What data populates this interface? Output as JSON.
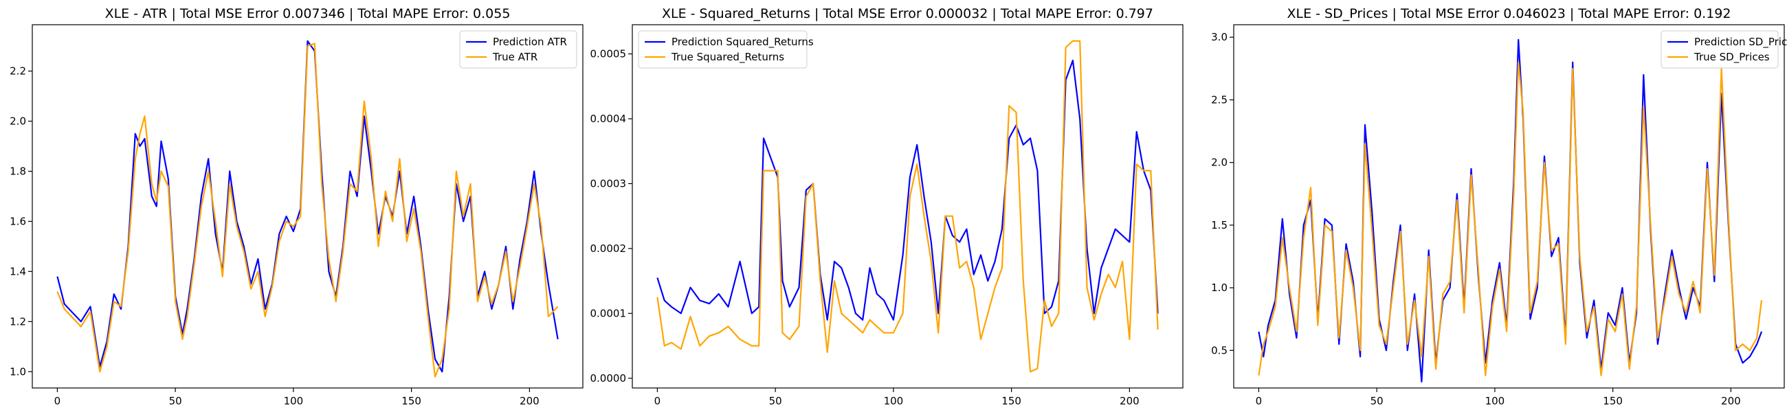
{
  "chart_data": [
    {
      "type": "line",
      "title": "XLE - ATR | Total MSE Error 0.007346 | Total MAPE Error: 0.055",
      "xlabel": "",
      "ylabel": "",
      "xlim": [
        -10.6,
        222.6
      ],
      "ylim": [
        0.935,
        2.385
      ],
      "xticks": [
        0,
        50,
        100,
        150,
        200
      ],
      "xtick_labels": [
        "0",
        "50",
        "100",
        "150",
        "200"
      ],
      "yticks": [
        1.0,
        1.2,
        1.4,
        1.6,
        1.8,
        2.0,
        2.2
      ],
      "ytick_labels": [
        "1.0",
        "1.2",
        "1.4",
        "1.6",
        "1.8",
        "2.0",
        "2.2"
      ],
      "legend_position": "top-right",
      "grid": false,
      "series": [
        {
          "name": "Prediction ATR",
          "color": "#0000ff",
          "x_points": [
            0,
            3,
            6,
            10,
            14,
            18,
            21,
            24,
            27,
            30,
            33,
            35,
            37,
            40,
            42,
            44,
            47,
            50,
            53,
            55,
            58,
            61,
            64,
            67,
            70,
            73,
            76,
            79,
            82,
            85,
            88,
            91,
            94,
            97,
            100,
            103,
            106,
            109,
            112,
            115,
            118,
            121,
            124,
            127,
            130,
            133,
            136,
            139,
            142,
            145,
            148,
            151,
            154,
            157,
            160,
            163,
            166,
            169,
            172,
            175,
            178,
            181,
            184,
            187,
            190,
            193,
            196,
            199,
            202,
            205,
            208,
            212
          ],
          "values": [
            1.38,
            1.27,
            1.24,
            1.2,
            1.26,
            1.02,
            1.12,
            1.31,
            1.25,
            1.5,
            1.95,
            1.9,
            1.93,
            1.7,
            1.66,
            1.92,
            1.77,
            1.3,
            1.15,
            1.25,
            1.45,
            1.7,
            1.85,
            1.55,
            1.4,
            1.8,
            1.6,
            1.5,
            1.35,
            1.45,
            1.25,
            1.35,
            1.55,
            1.62,
            1.56,
            1.65,
            2.32,
            2.28,
            1.8,
            1.4,
            1.3,
            1.5,
            1.8,
            1.7,
            2.02,
            1.8,
            1.55,
            1.7,
            1.62,
            1.8,
            1.55,
            1.7,
            1.5,
            1.25,
            1.05,
            1.0,
            1.3,
            1.75,
            1.6,
            1.7,
            1.3,
            1.4,
            1.25,
            1.35,
            1.5,
            1.25,
            1.45,
            1.6,
            1.8,
            1.55,
            1.35,
            1.13
          ]
        },
        {
          "name": "True ATR",
          "color": "#ffa500",
          "x_points": [
            0,
            3,
            6,
            10,
            14,
            18,
            21,
            24,
            27,
            30,
            33,
            35,
            37,
            40,
            42,
            44,
            47,
            50,
            53,
            55,
            58,
            61,
            64,
            67,
            70,
            73,
            76,
            79,
            82,
            85,
            88,
            91,
            94,
            97,
            100,
            103,
            106,
            109,
            112,
            115,
            118,
            121,
            124,
            127,
            130,
            133,
            136,
            139,
            142,
            145,
            148,
            151,
            154,
            157,
            160,
            163,
            166,
            169,
            172,
            175,
            178,
            181,
            184,
            187,
            190,
            193,
            196,
            199,
            202,
            205,
            208,
            212
          ],
          "values": [
            1.32,
            1.25,
            1.22,
            1.18,
            1.24,
            1.0,
            1.1,
            1.28,
            1.26,
            1.48,
            1.85,
            1.95,
            2.02,
            1.75,
            1.68,
            1.8,
            1.74,
            1.28,
            1.13,
            1.22,
            1.43,
            1.66,
            1.8,
            1.6,
            1.38,
            1.75,
            1.58,
            1.48,
            1.33,
            1.4,
            1.22,
            1.34,
            1.52,
            1.6,
            1.58,
            1.62,
            2.3,
            2.31,
            1.75,
            1.45,
            1.28,
            1.48,
            1.75,
            1.72,
            2.08,
            1.85,
            1.5,
            1.72,
            1.6,
            1.85,
            1.52,
            1.65,
            1.48,
            1.22,
            0.98,
            1.05,
            1.25,
            1.8,
            1.62,
            1.75,
            1.28,
            1.38,
            1.27,
            1.35,
            1.48,
            1.28,
            1.42,
            1.58,
            1.75,
            1.58,
            1.22,
            1.26
          ]
        }
      ]
    },
    {
      "type": "line",
      "title": "XLE - Squared_Returns | Total MSE Error 0.000032 | Total MAPE Error: 0.797",
      "xlabel": "",
      "ylabel": "",
      "xlim": [
        -10.6,
        222.6
      ],
      "ylim": [
        -1.5e-05,
        0.000545
      ],
      "xticks": [
        0,
        50,
        100,
        150,
        200
      ],
      "xtick_labels": [
        "0",
        "50",
        "100",
        "150",
        "200"
      ],
      "yticks": [
        0.0,
        0.0001,
        0.0002,
        0.0003,
        0.0004,
        0.0005
      ],
      "ytick_labels": [
        "0.0000",
        "0.0001",
        "0.0002",
        "0.0003",
        "0.0004",
        "0.0005"
      ],
      "legend_position": "top-left",
      "grid": false,
      "series": [
        {
          "name": "Prediction Squared_Returns",
          "color": "#0000ff",
          "x_points": [
            0,
            3,
            6,
            10,
            14,
            18,
            22,
            26,
            30,
            35,
            40,
            43,
            45,
            48,
            51,
            53,
            56,
            60,
            63,
            66,
            69,
            72,
            75,
            78,
            81,
            84,
            87,
            90,
            93,
            96,
            100,
            104,
            107,
            110,
            113,
            116,
            119,
            122,
            125,
            128,
            131,
            134,
            137,
            140,
            143,
            146,
            149,
            152,
            155,
            158,
            161,
            164,
            167,
            170,
            173,
            176,
            179,
            182,
            185,
            188,
            191,
            194,
            197,
            200,
            203,
            206,
            209,
            212
          ],
          "values": [
            0.000155,
            0.00012,
            0.00011,
            0.0001,
            0.00014,
            0.00012,
            0.000115,
            0.00013,
            0.00011,
            0.00018,
            0.0001,
            0.00011,
            0.00037,
            0.00034,
            0.00031,
            0.00015,
            0.00011,
            0.00014,
            0.00029,
            0.0003,
            0.00016,
            9e-05,
            0.00018,
            0.00017,
            0.00014,
            0.0001,
            9e-05,
            0.00017,
            0.00013,
            0.00012,
            9e-05,
            0.00019,
            0.00031,
            0.00036,
            0.00028,
            0.00021,
            0.0001,
            0.00025,
            0.00022,
            0.00021,
            0.00023,
            0.00016,
            0.00019,
            0.00015,
            0.00018,
            0.00023,
            0.00037,
            0.00039,
            0.00036,
            0.00037,
            0.00032,
            0.0001,
            0.00011,
            0.00015,
            0.00046,
            0.00049,
            0.0004,
            0.0002,
            0.0001,
            0.00017,
            0.0002,
            0.00023,
            0.00022,
            0.00021,
            0.00038,
            0.00032,
            0.00029,
            0.0001
          ]
        },
        {
          "name": "True Squared_Returns",
          "color": "#ffa500",
          "x_points": [
            0,
            3,
            6,
            10,
            14,
            18,
            22,
            26,
            30,
            35,
            40,
            43,
            45,
            48,
            51,
            53,
            56,
            60,
            63,
            66,
            69,
            72,
            75,
            78,
            81,
            84,
            87,
            90,
            93,
            96,
            100,
            104,
            107,
            110,
            113,
            116,
            119,
            122,
            125,
            128,
            131,
            134,
            137,
            140,
            143,
            146,
            149,
            152,
            155,
            158,
            161,
            164,
            167,
            170,
            173,
            176,
            179,
            182,
            185,
            188,
            191,
            194,
            197,
            200,
            203,
            206,
            209,
            212
          ],
          "values": [
            0.000125,
            5e-05,
            5.5e-05,
            4.5e-05,
            9.5e-05,
            5e-05,
            6.5e-05,
            7e-05,
            8e-05,
            6e-05,
            5e-05,
            5e-05,
            0.00032,
            0.00032,
            0.00032,
            7e-05,
            6e-05,
            8e-05,
            0.00028,
            0.0003,
            0.00015,
            4e-05,
            0.00015,
            0.0001,
            9e-05,
            8e-05,
            7e-05,
            9e-05,
            8e-05,
            7e-05,
            7e-05,
            0.0001,
            0.00028,
            0.00033,
            0.00025,
            0.00018,
            7e-05,
            0.00025,
            0.00025,
            0.00017,
            0.00018,
            0.00014,
            6e-05,
            0.0001,
            0.00014,
            0.00017,
            0.00042,
            0.00041,
            0.00015,
            1e-05,
            1.5e-05,
            0.00012,
            8e-05,
            0.0001,
            0.00051,
            0.00052,
            0.00052,
            0.00014,
            9e-05,
            0.00013,
            0.00016,
            0.00014,
            0.00018,
            6e-05,
            0.00033,
            0.00032,
            0.00032,
            7.5e-05
          ]
        }
      ]
    },
    {
      "type": "line",
      "title": "XLE - SD_Prices | Total MSE Error 0.046023 | Total MAPE Error: 0.192",
      "xlabel": "",
      "ylabel": "",
      "xlim": [
        -10.6,
        222.6
      ],
      "ylim": [
        0.2,
        3.1
      ],
      "xticks": [
        0,
        50,
        100,
        150,
        200
      ],
      "xtick_labels": [
        "0",
        "50",
        "100",
        "150",
        "200"
      ],
      "yticks": [
        0.5,
        1.0,
        1.5,
        2.0,
        2.5,
        3.0
      ],
      "ytick_labels": [
        "0.5",
        "1.0",
        "1.5",
        "2.0",
        "2.5",
        "3.0"
      ],
      "legend_position": "top-right",
      "grid": false,
      "series": [
        {
          "name": "Prediction SD_Prices",
          "color": "#0000ff",
          "x_points": [
            0,
            2,
            4,
            7,
            10,
            13,
            16,
            19,
            22,
            25,
            28,
            31,
            34,
            37,
            40,
            43,
            45,
            48,
            51,
            54,
            57,
            60,
            63,
            66,
            69,
            72,
            75,
            78,
            81,
            84,
            87,
            90,
            93,
            96,
            99,
            102,
            105,
            108,
            110,
            112,
            115,
            118,
            121,
            124,
            127,
            130,
            133,
            136,
            139,
            142,
            145,
            148,
            151,
            154,
            157,
            160,
            163,
            166,
            169,
            172,
            175,
            178,
            181,
            184,
            187,
            190,
            193,
            196,
            199,
            202,
            205,
            208,
            211,
            213
          ],
          "values": [
            0.65,
            0.45,
            0.7,
            0.9,
            1.55,
            0.95,
            0.6,
            1.5,
            1.7,
            0.75,
            1.55,
            1.5,
            0.55,
            1.35,
            1.05,
            0.45,
            2.3,
            1.6,
            0.75,
            0.5,
            1.05,
            1.5,
            0.5,
            0.95,
            0.25,
            1.3,
            0.4,
            0.9,
            1.0,
            1.75,
            0.85,
            1.95,
            1.1,
            0.4,
            0.9,
            1.2,
            0.7,
            1.85,
            2.98,
            2.35,
            0.75,
            1.0,
            2.05,
            1.25,
            1.4,
            0.6,
            2.8,
            1.2,
            0.6,
            0.9,
            0.35,
            0.8,
            0.7,
            1.0,
            0.4,
            0.8,
            2.7,
            1.45,
            0.55,
            0.95,
            1.3,
            1.0,
            0.75,
            1.0,
            0.85,
            2.0,
            1.05,
            2.55,
            1.5,
            0.55,
            0.4,
            0.45,
            0.55,
            0.65
          ]
        },
        {
          "name": "True SD_Prices",
          "color": "#ffa500",
          "x_points": [
            0,
            2,
            4,
            7,
            10,
            13,
            16,
            19,
            22,
            25,
            28,
            31,
            34,
            37,
            40,
            43,
            45,
            48,
            51,
            54,
            57,
            60,
            63,
            66,
            69,
            72,
            75,
            78,
            81,
            84,
            87,
            90,
            93,
            96,
            99,
            102,
            105,
            108,
            110,
            112,
            115,
            118,
            121,
            124,
            127,
            130,
            133,
            136,
            139,
            142,
            145,
            148,
            151,
            154,
            157,
            160,
            163,
            166,
            169,
            172,
            175,
            178,
            181,
            184,
            187,
            190,
            193,
            196,
            199,
            202,
            205,
            208,
            211,
            213
          ],
          "values": [
            0.3,
            0.55,
            0.65,
            0.85,
            1.4,
            1.0,
            0.65,
            1.4,
            1.8,
            0.7,
            1.5,
            1.45,
            0.6,
            1.3,
            1.0,
            0.5,
            2.15,
            1.45,
            0.7,
            0.55,
            1.0,
            1.45,
            0.55,
            0.9,
            0.45,
            1.25,
            0.35,
            0.95,
            1.05,
            1.7,
            0.8,
            1.9,
            1.15,
            0.3,
            0.85,
            1.15,
            0.65,
            1.75,
            2.8,
            2.4,
            0.8,
            1.05,
            2.0,
            1.3,
            1.35,
            0.55,
            2.75,
            1.25,
            0.65,
            0.85,
            0.3,
            0.75,
            0.65,
            0.95,
            0.35,
            0.85,
            2.45,
            1.5,
            0.6,
            0.9,
            1.25,
            0.95,
            0.8,
            1.05,
            0.8,
            1.95,
            1.1,
            2.75,
            1.55,
            0.5,
            0.55,
            0.5,
            0.6,
            0.9
          ]
        }
      ]
    }
  ]
}
